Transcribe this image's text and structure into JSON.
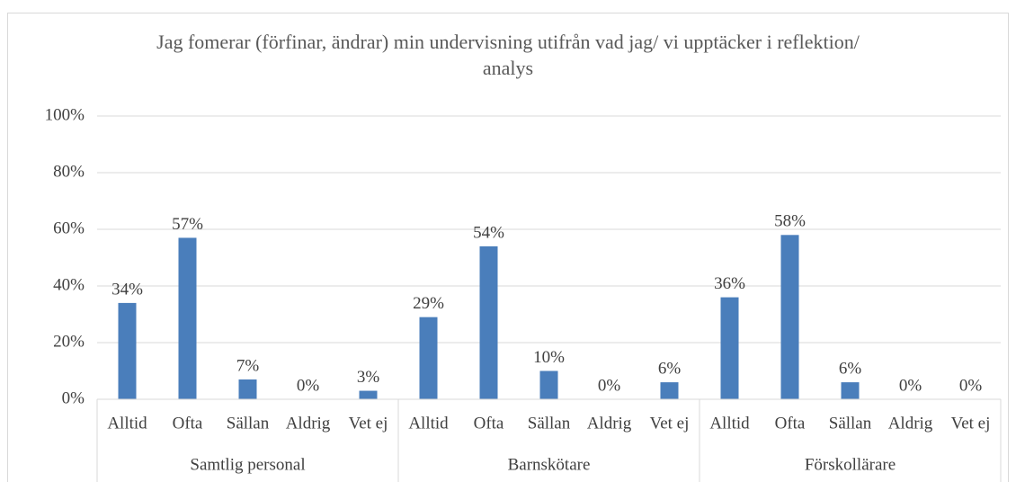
{
  "chart_data": {
    "type": "bar",
    "title": "Jag fomerar (förfinar, ändrar) min undervisning utifrån vad jag/ vi upptäcker i reflektion/ analys",
    "color": "#4a7ebb",
    "groups": [
      {
        "name": "Samtlig personal",
        "categories": [
          "Alltid",
          "Ofta",
          "Sällan",
          "Aldrig",
          "Vet ej"
        ],
        "values": [
          34,
          57,
          7,
          0,
          3
        ],
        "value_labels": [
          "34%",
          "57%",
          "7%",
          "0%",
          "3%"
        ]
      },
      {
        "name": "Barnskötare",
        "categories": [
          "Alltid",
          "Ofta",
          "Sällan",
          "Aldrig",
          "Vet ej"
        ],
        "values": [
          29,
          54,
          10,
          0,
          6
        ],
        "value_labels": [
          "29%",
          "54%",
          "10%",
          "0%",
          "6%"
        ]
      },
      {
        "name": "Förskollärare",
        "categories": [
          "Alltid",
          "Ofta",
          "Sällan",
          "Aldrig",
          "Vet ej"
        ],
        "values": [
          36,
          58,
          6,
          0,
          0
        ],
        "value_labels": [
          "36%",
          "58%",
          "6%",
          "0%",
          "0%"
        ]
      }
    ],
    "ylim": [
      0,
      100
    ],
    "yticks": [
      {
        "value": 0,
        "label": "0%"
      },
      {
        "value": 20,
        "label": "20%"
      },
      {
        "value": 40,
        "label": "40%"
      },
      {
        "value": 60,
        "label": "60%"
      },
      {
        "value": 80,
        "label": "80%"
      },
      {
        "value": 100,
        "label": "100%"
      }
    ],
    "grid": true
  }
}
